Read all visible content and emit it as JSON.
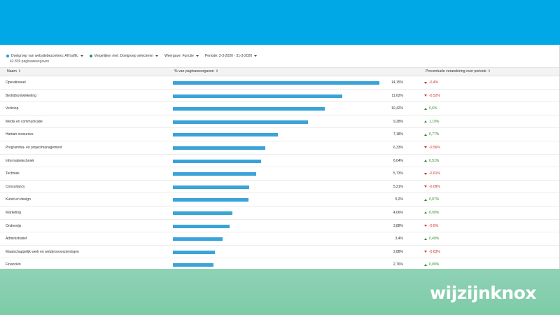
{
  "filters": [
    {
      "label": "Doelgroep van websitebezoekers: All traffic",
      "dot_color": "#1a9bd7"
    },
    {
      "label": "Vergelijken met: Doelgroep selecteren",
      "dot_color": "#1a9b5a"
    },
    {
      "label": "Weergave: Functie",
      "dot_color": ""
    },
    {
      "label": "Periode: 2-3-2020 - 31-3-2020",
      "dot_color": ""
    }
  ],
  "subcount": "42.839 paginaweergaven",
  "columns": {
    "name": "Naam",
    "percentage": "% van paginaweergaven",
    "change": "Procentuele verandering over periode"
  },
  "rows": [
    {
      "name": "Operationeel",
      "pct_value": 14.15,
      "pct_label": "14,15%",
      "direction": "down",
      "change": "0,4%"
    },
    {
      "name": "Bedrijfsontwikkeling",
      "pct_value": 11.62,
      "pct_label": "11,62%",
      "direction": "down",
      "change": "0,52%"
    },
    {
      "name": "Verkoop",
      "pct_value": 10.42,
      "pct_label": "10,42%",
      "direction": "up",
      "change": "0,6%"
    },
    {
      "name": "Media en communicatie",
      "pct_value": 9.28,
      "pct_label": "9,28%",
      "direction": "up",
      "change": "1,19%"
    },
    {
      "name": "Human resources",
      "pct_value": 7.18,
      "pct_label": "7,18%",
      "direction": "up",
      "change": "0,77%"
    },
    {
      "name": "Programma- en projectmanagement",
      "pct_value": 6.33,
      "pct_label": "6,33%",
      "direction": "down",
      "change": "0,56%"
    },
    {
      "name": "Informatietechniek",
      "pct_value": 6.04,
      "pct_label": "6,04%",
      "direction": "up",
      "change": "0,51%"
    },
    {
      "name": "Techniek",
      "pct_value": 5.73,
      "pct_label": "5,73%",
      "direction": "down",
      "change": "0,61%"
    },
    {
      "name": "Consultancy",
      "pct_value": 5.21,
      "pct_label": "5,21%",
      "direction": "down",
      "change": "0,09%"
    },
    {
      "name": "Kunst en design",
      "pct_value": 5.2,
      "pct_label": "5,2%",
      "direction": "up",
      "change": "0,07%"
    },
    {
      "name": "Marketing",
      "pct_value": 4.06,
      "pct_label": "4,06%",
      "direction": "up",
      "change": "0,99%"
    },
    {
      "name": "Onderwijs",
      "pct_value": 3.88,
      "pct_label": "3,88%",
      "direction": "down",
      "change": "0,6%"
    },
    {
      "name": "Administratief",
      "pct_value": 3.4,
      "pct_label": "3,4%",
      "direction": "up",
      "change": "0,49%"
    },
    {
      "name": "Maatschappelijk werk en welzijnsvoorzieningen",
      "pct_value": 2.88,
      "pct_label": "2,88%",
      "direction": "down",
      "change": "0,63%"
    },
    {
      "name": "Financiën",
      "pct_value": 2.76,
      "pct_label": "2,76%",
      "direction": "up",
      "change": "0,09%"
    }
  ],
  "brand": "wijzijnknox",
  "colors": {
    "top_band": "#00a9e6",
    "bottom_band": "#7ecba8",
    "bar": "#3aa3d9",
    "up": "#2e8b2e",
    "down": "#d12b2b"
  }
}
